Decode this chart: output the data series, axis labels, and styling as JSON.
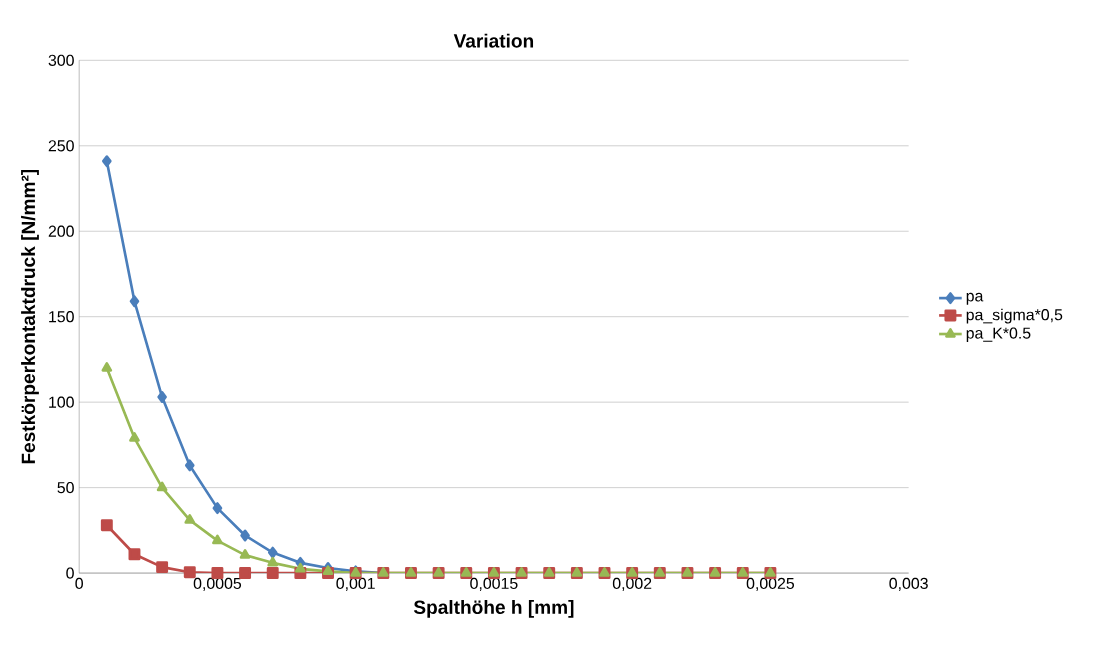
{
  "chart_data": {
    "type": "line",
    "title": "Variation",
    "xlabel": "Spalthöhe h [mm]",
    "ylabel": "Festkörperkontaktdruck [N/mm²]",
    "x": [
      0.0001,
      0.0002,
      0.0003,
      0.0004,
      0.0005,
      0.0006,
      0.0007,
      0.0008,
      0.0009,
      0.001,
      0.0011,
      0.0012,
      0.0013,
      0.0014,
      0.0015,
      0.0016,
      0.0017,
      0.0018,
      0.0019,
      0.002,
      0.0021,
      0.0022,
      0.0023,
      0.0024,
      0.0025
    ],
    "series": [
      {
        "name": "pa",
        "color": "#4a7ebb",
        "marker": "diamond",
        "values": [
          241,
          159,
          103,
          63,
          38,
          22,
          12,
          6,
          3,
          1,
          0,
          null,
          null,
          null,
          null,
          null,
          null,
          null,
          null,
          null,
          null,
          null,
          null,
          null,
          null
        ]
      },
      {
        "name": "pa_sigma*0,5",
        "color": "#be4b48",
        "marker": "square",
        "values": [
          28,
          11,
          3.5,
          0.5,
          0,
          0,
          0,
          0,
          0,
          0,
          0,
          0,
          0,
          0,
          0,
          0,
          0,
          0,
          0,
          0,
          0,
          0,
          0,
          0,
          0
        ]
      },
      {
        "name": "pa_K*0.5",
        "color": "#98b954",
        "marker": "triangle",
        "values": [
          120,
          79,
          50,
          31,
          19,
          10.5,
          6,
          2.5,
          1,
          0,
          0,
          0,
          0,
          0,
          0,
          0,
          0,
          0,
          0,
          0,
          0,
          0,
          0,
          0,
          0
        ]
      }
    ],
    "xlim": [
      0,
      0.003
    ],
    "xticks": [
      0,
      {
        "value": 0.0005,
        "label": "0,0005"
      },
      {
        "value": 0.001,
        "label": "0,001"
      },
      {
        "value": 0.0015,
        "label": "0,0015"
      },
      {
        "value": 0.002,
        "label": "0,002"
      },
      {
        "value": 0.0025,
        "label": "0,0025"
      },
      {
        "value": 0.003,
        "label": "0,003"
      }
    ],
    "ylim": [
      0,
      300
    ],
    "yticks": [
      0,
      50,
      100,
      150,
      200,
      250,
      300
    ],
    "grid": "y",
    "legend": "right",
    "line_style": "solid"
  }
}
